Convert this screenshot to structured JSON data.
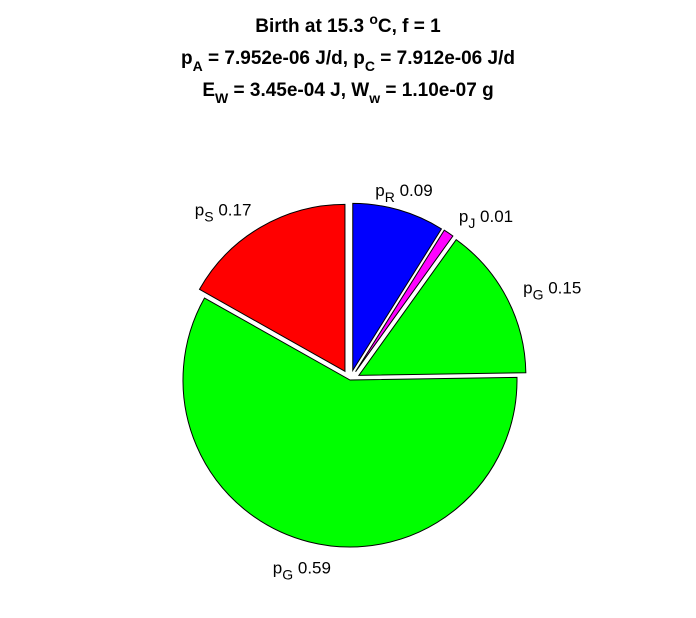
{
  "chart_data": {
    "type": "pie",
    "title": [
      [
        {
          "text": "Birth at 15.3 "
        },
        {
          "text": "o",
          "script": "sup"
        },
        {
          "text": "C, f = 1"
        }
      ],
      [
        {
          "text": "p"
        },
        {
          "text": "A",
          "script": "sub"
        },
        {
          "text": " = 7.952e-06 J/d, p"
        },
        {
          "text": "C",
          "script": "sub"
        },
        {
          "text": " = 7.912e-06 J/d"
        }
      ],
      [
        {
          "text": "E"
        },
        {
          "text": "W",
          "script": "sub"
        },
        {
          "text": " = 3.45e-04 J, W"
        },
        {
          "text": "w",
          "script": "sub"
        },
        {
          "text": " = 1.10e-07 g"
        }
      ]
    ],
    "categories": [
      {
        "name": "p",
        "sub": "R"
      },
      {
        "name": "p",
        "sub": "J"
      },
      {
        "name": "p",
        "sub": "G"
      },
      {
        "name": "p",
        "sub": "G"
      },
      {
        "name": "p",
        "sub": "S"
      }
    ],
    "values": [
      0.09,
      0.01,
      0.15,
      0.59,
      0.17
    ],
    "colors": [
      "#0000ff",
      "#ff00ff",
      "#00ff00",
      "#00ff00",
      "#ff0000"
    ],
    "explode": [
      true,
      true,
      true,
      false,
      true
    ]
  }
}
